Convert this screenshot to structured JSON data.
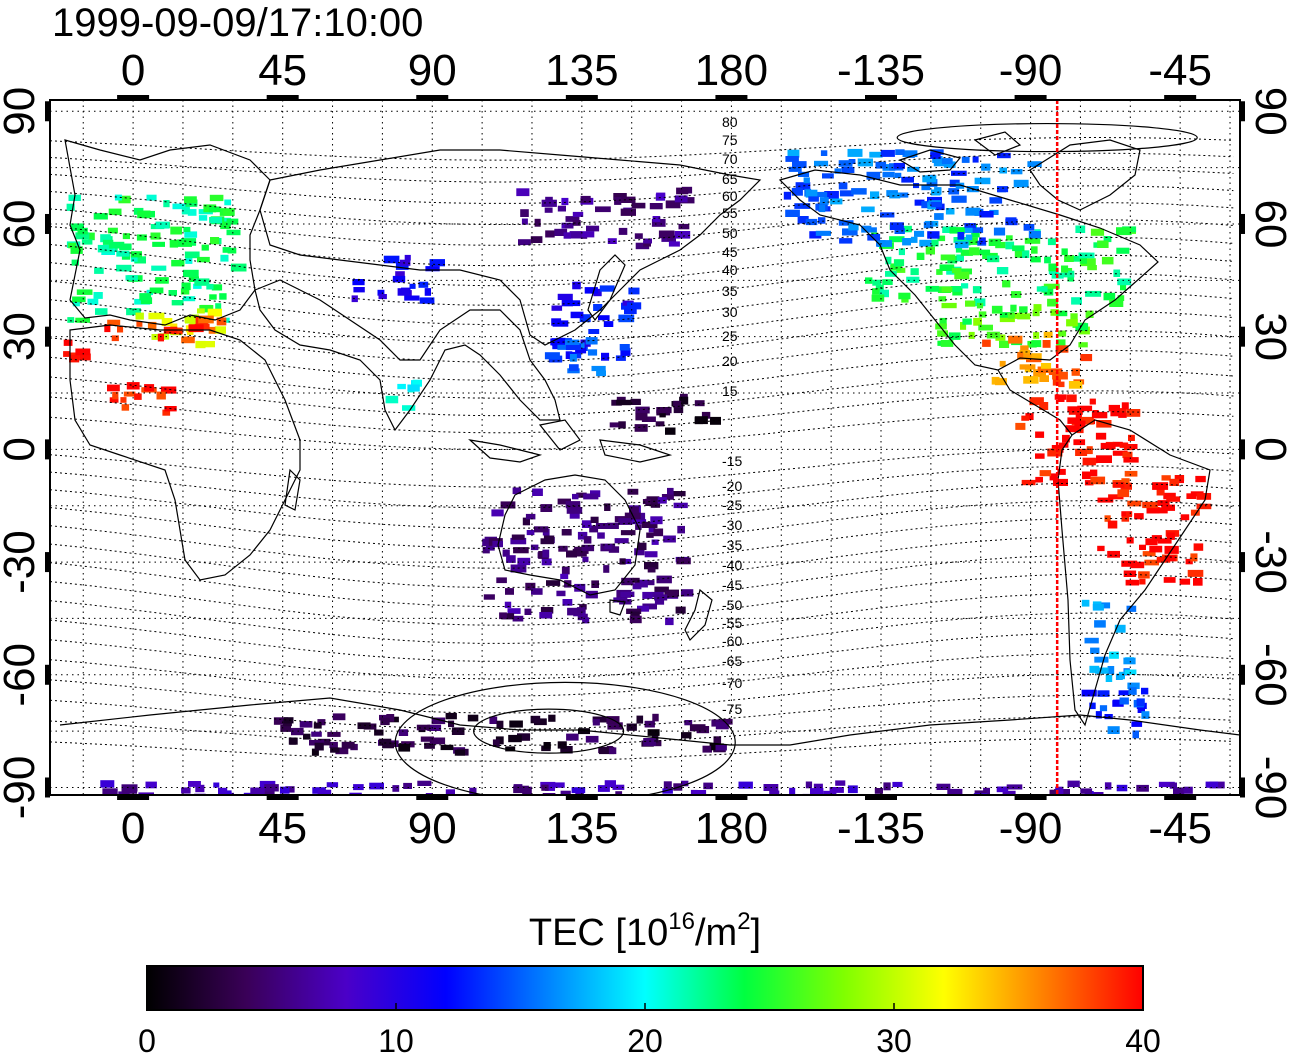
{
  "map": {
    "timestamp": "1999-09-09/17:10:00",
    "lon_ticks": [
      "0",
      "45",
      "90",
      "135",
      "180",
      "-135",
      "-90",
      "-45"
    ],
    "lon_tick_values": [
      0,
      45,
      90,
      135,
      180,
      225,
      270,
      315
    ],
    "lat_ticks": [
      "90",
      "60",
      "30",
      "0",
      "-30",
      "-60",
      "-90"
    ],
    "lat_tick_values": [
      90,
      60,
      30,
      0,
      -30,
      -60,
      -90
    ],
    "lon_range": [
      -25,
      333
    ],
    "lat_range": [
      -92,
      93
    ],
    "terminator_longitude": 278,
    "terminator_color": "#ff0000",
    "grid": "dotted",
    "contour_labels_north": [
      "80",
      "75",
      "70",
      "65",
      "60",
      "55",
      "50",
      "45",
      "40",
      "35",
      "30",
      "25",
      "20",
      "15"
    ],
    "contour_labels_south": [
      "-15",
      "-20",
      "-25",
      "-30",
      "-35",
      "-40",
      "-45",
      "-50",
      "-55",
      "-60",
      "-65",
      "-70",
      "-75"
    ]
  },
  "colorbar": {
    "title_prefix": "TEC  [10",
    "title_exp1": "16",
    "title_mid": "/m",
    "title_exp2": "2",
    "title_suffix": "]",
    "ticks": [
      "0",
      "10",
      "20",
      "30",
      "40"
    ],
    "tick_values": [
      0,
      10,
      20,
      30,
      40
    ],
    "range": [
      0,
      40
    ],
    "colormap": [
      "#000000",
      "#3a0058",
      "#4b00c8",
      "#0000ff",
      "#0080ff",
      "#00ffff",
      "#00ff40",
      "#80ff00",
      "#ffff00",
      "#ff8000",
      "#ff0000"
    ]
  },
  "chart_data": {
    "type": "heatmap",
    "title": "1999-09-09/17:10:00",
    "xlim": [
      -25,
      333
    ],
    "ylim": [
      -92,
      93
    ],
    "value_range": [
      0,
      40
    ],
    "units": "TEC [10^16/m^2]",
    "regions": [
      {
        "lon": [
          -20,
          30
        ],
        "lat": [
          35,
          68
        ],
        "tec": 23
      },
      {
        "lon": [
          0,
          25
        ],
        "lat": [
          28,
          38
        ],
        "tec": 32
      },
      {
        "lon": [
          -10,
          30
        ],
        "lat": [
          30,
          36
        ],
        "tec": 38
      },
      {
        "lon": [
          -22,
          -15
        ],
        "lat": [
          25,
          35
        ],
        "tec": 40
      },
      {
        "lon": [
          -10,
          10
        ],
        "lat": [
          10,
          20
        ],
        "tec": 40
      },
      {
        "lon": [
          65,
          90
        ],
        "lat": [
          40,
          52
        ],
        "tec": 11
      },
      {
        "lon": [
          75,
          85
        ],
        "lat": [
          10,
          20
        ],
        "tec": 19
      },
      {
        "lon": [
          125,
          150
        ],
        "lat": [
          25,
          45
        ],
        "tec": 12
      },
      {
        "lon": [
          120,
          140
        ],
        "lat": [
          20,
          30
        ],
        "tec": 15
      },
      {
        "lon": [
          115,
          165
        ],
        "lat": [
          55,
          70
        ],
        "tec": 6
      },
      {
        "lon": [
          140,
          175
        ],
        "lat": [
          5,
          15
        ],
        "tec": 2
      },
      {
        "lon": [
          105,
          165
        ],
        "lat": [
          -45,
          -10
        ],
        "tec": 5
      },
      {
        "lon": [
          220,
          300
        ],
        "lat": [
          40,
          60
        ],
        "tec": 24
      },
      {
        "lon": [
          240,
          290
        ],
        "lat": [
          28,
          40
        ],
        "tec": 26
      },
      {
        "lon": [
          255,
          285
        ],
        "lat": [
          18,
          32
        ],
        "tec": 36
      },
      {
        "lon": [
          265,
          300
        ],
        "lat": [
          -10,
          15
        ],
        "tec": 40
      },
      {
        "lon": [
          290,
          320
        ],
        "lat": [
          -35,
          -5
        ],
        "tec": 40
      },
      {
        "lon": [
          285,
          300
        ],
        "lat": [
          -60,
          -40
        ],
        "tec": 17
      },
      {
        "lon": [
          285,
          305
        ],
        "lat": [
          -75,
          -60
        ],
        "tec": 14
      },
      {
        "lon": [
          195,
          270
        ],
        "lat": [
          55,
          80
        ],
        "tec": 15
      },
      {
        "lon": [
          -20,
          330
        ],
        "lat": [
          -92,
          -88
        ],
        "tec": 7
      },
      {
        "lon": [
          40,
          180
        ],
        "lat": [
          -80,
          -70
        ],
        "tec": 3
      }
    ]
  }
}
